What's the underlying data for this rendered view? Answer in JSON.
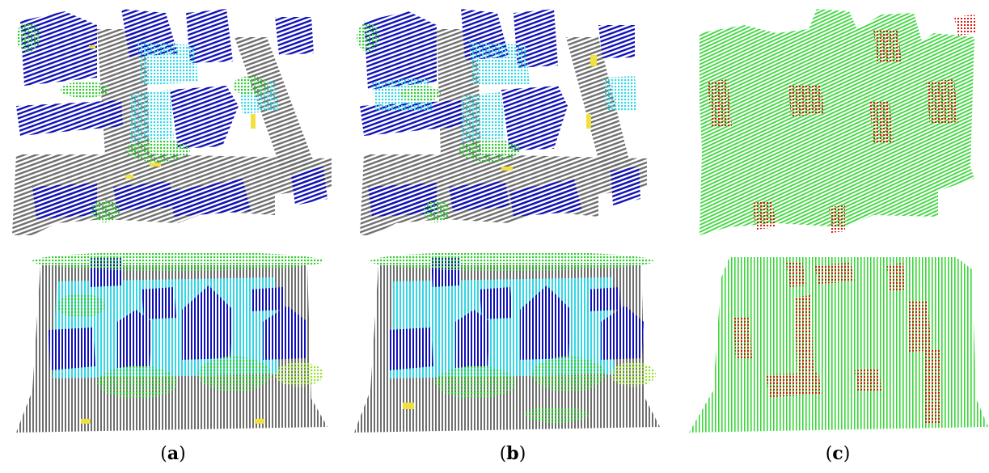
{
  "panels": [
    {
      "id": "a",
      "label_open": "(",
      "label_letter": "a",
      "label_close": ")"
    },
    {
      "id": "b",
      "label_open": "(",
      "label_letter": "b",
      "label_close": ")"
    },
    {
      "id": "c",
      "label_open": "(",
      "label_letter": "c",
      "label_close": ")"
    }
  ],
  "colors": {
    "ground": "#6f6f6f",
    "building": "#1010b8",
    "low_vegetation": "#33d6e6",
    "tree": "#33cc33",
    "shrub": "#99e033",
    "car": "#f0e040",
    "correct": "#39d639",
    "error": "#e01010",
    "background": "#ffffff"
  }
}
